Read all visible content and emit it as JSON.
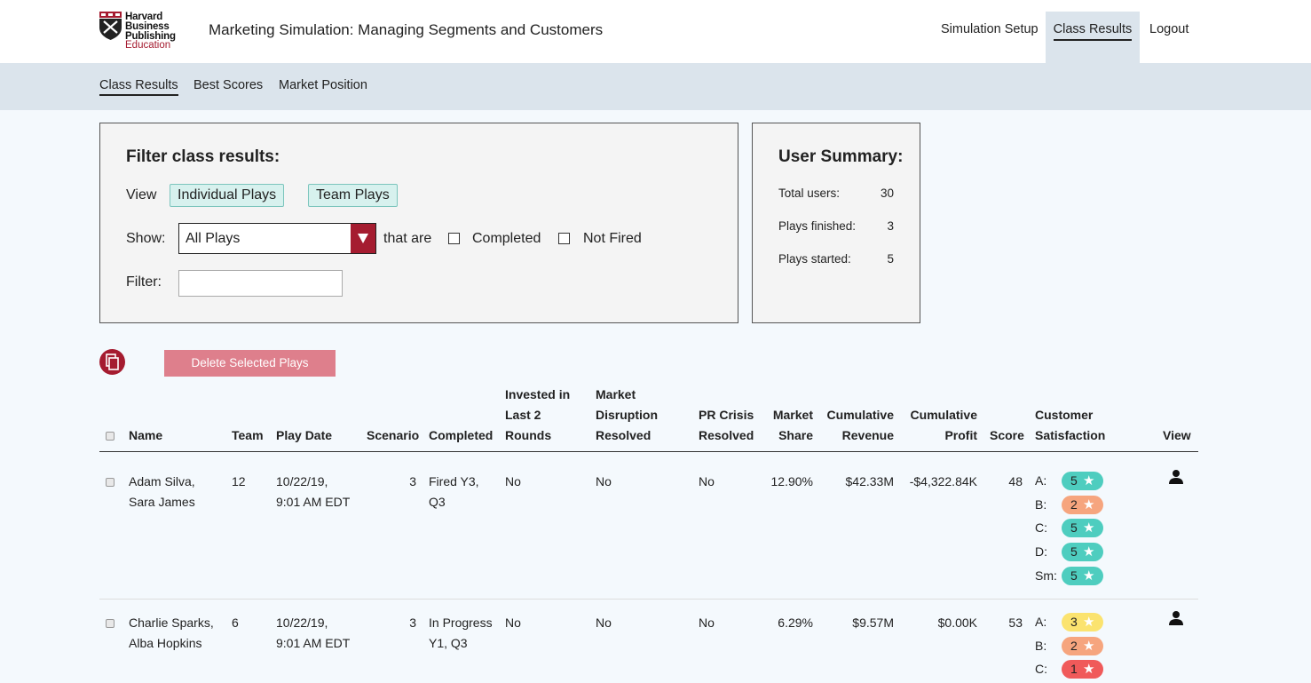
{
  "logo": {
    "line1": "Harvard",
    "line2": "Business",
    "line3": "Publishing",
    "line4": "Education"
  },
  "app_title": "Marketing Simulation: Managing Segments and Customers",
  "top_nav": {
    "setup": "Simulation Setup",
    "results": "Class Results",
    "logout": "Logout"
  },
  "sub_nav": {
    "class_results": "Class Results",
    "best_scores": "Best Scores",
    "market_position": "Market Position"
  },
  "filter": {
    "title": "Filter class results:",
    "view_label": "View",
    "individual_plays": "Individual Plays",
    "team_plays": "Team Plays",
    "show_label": "Show:",
    "show_value": "All Plays",
    "that_are": "that are",
    "completed": "Completed",
    "not_fired": "Not Fired",
    "filter_label": "Filter:",
    "filter_value": ""
  },
  "summary": {
    "title": "User Summary:",
    "total_users_label": "Total users:",
    "total_users": "30",
    "plays_finished_label": "Plays finished:",
    "plays_finished": "3",
    "plays_started_label": "Plays started:",
    "plays_started": "5"
  },
  "actions": {
    "delete_selected": "Delete Selected Plays"
  },
  "table": {
    "headers": {
      "name": "Name",
      "team": "Team",
      "play_date": "Play Date",
      "scenario": "Scenario",
      "completed": "Completed",
      "invested_1": "Invested in",
      "invested_2": "Last 2",
      "invested_3": "Rounds",
      "disruption_1": "Market",
      "disruption_2": "Disruption",
      "disruption_3": "Resolved",
      "pr_1": "PR Crisis",
      "pr_2": "Resolved",
      "share_1": "Market",
      "share_2": "Share",
      "revenue_1": "Cumulative",
      "revenue_2": "Revenue",
      "profit_1": "Cumulative",
      "profit_2": "Profit",
      "score": "Score",
      "satisfaction_1": "Customer",
      "satisfaction_2": "Satisfaction",
      "view": "View"
    },
    "rows": [
      {
        "name_1": "Adam Silva,",
        "name_2": "Sara James",
        "team": "12",
        "date_1": "10/22/19,",
        "date_2": "9:01 AM EDT",
        "scenario": "3",
        "completed_1": "Fired Y3,",
        "completed_2": "Q3",
        "invested": "No",
        "disruption": "No",
        "pr": "No",
        "share": "12.90%",
        "revenue": "$42.33M",
        "profit": "-$4,322.84K",
        "score": "48",
        "satisfaction": [
          {
            "seg": "A:",
            "rating": "5"
          },
          {
            "seg": "B:",
            "rating": "2"
          },
          {
            "seg": "C:",
            "rating": "5"
          },
          {
            "seg": "D:",
            "rating": "5"
          },
          {
            "seg": "Sm:",
            "rating": "5"
          }
        ]
      },
      {
        "name_1": "Charlie Sparks,",
        "name_2": "Alba Hopkins",
        "team": "6",
        "date_1": "10/22/19,",
        "date_2": "9:01 AM EDT",
        "scenario": "3",
        "completed_1": "In Progress",
        "completed_2": "Y1, Q3",
        "invested": "No",
        "disruption": "No",
        "pr": "No",
        "share": "6.29%",
        "revenue": "$9.57M",
        "profit": "$0.00K",
        "score": "53",
        "satisfaction": [
          {
            "seg": "A:",
            "rating": "3"
          },
          {
            "seg": "B:",
            "rating": "2"
          },
          {
            "seg": "C:",
            "rating": "1"
          }
        ]
      }
    ]
  },
  "colors": {
    "brand_red": "#a51c30",
    "rating_5": "#4ecdbf",
    "rating_3": "#fbe36f",
    "rating_2": "#f6a57e",
    "rating_1": "#f05a5a"
  }
}
